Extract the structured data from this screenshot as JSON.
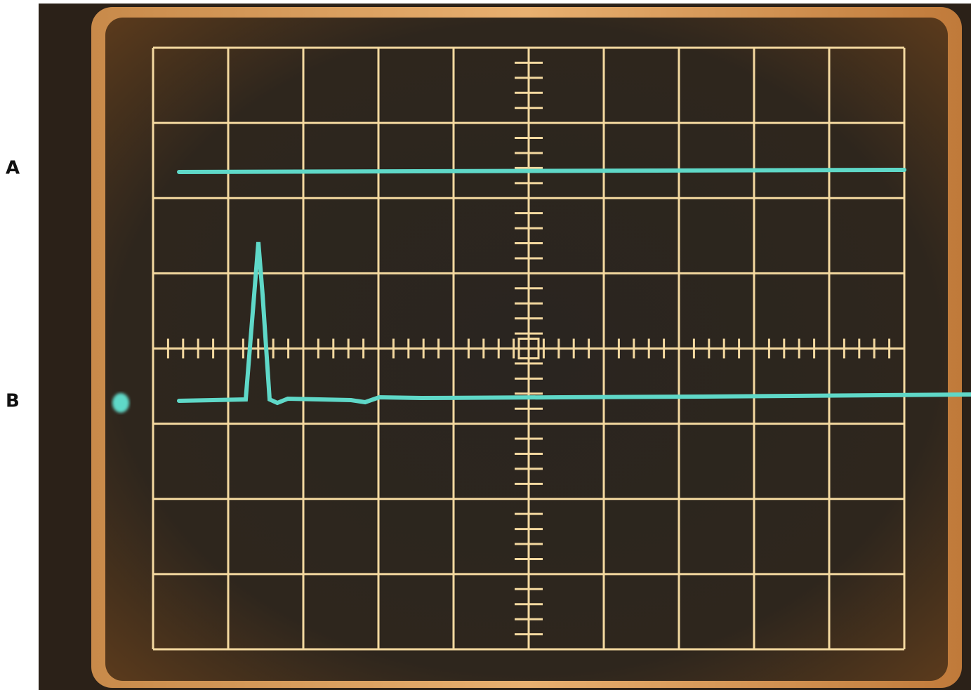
{
  "labels": [
    "A",
    "B"
  ]
}
